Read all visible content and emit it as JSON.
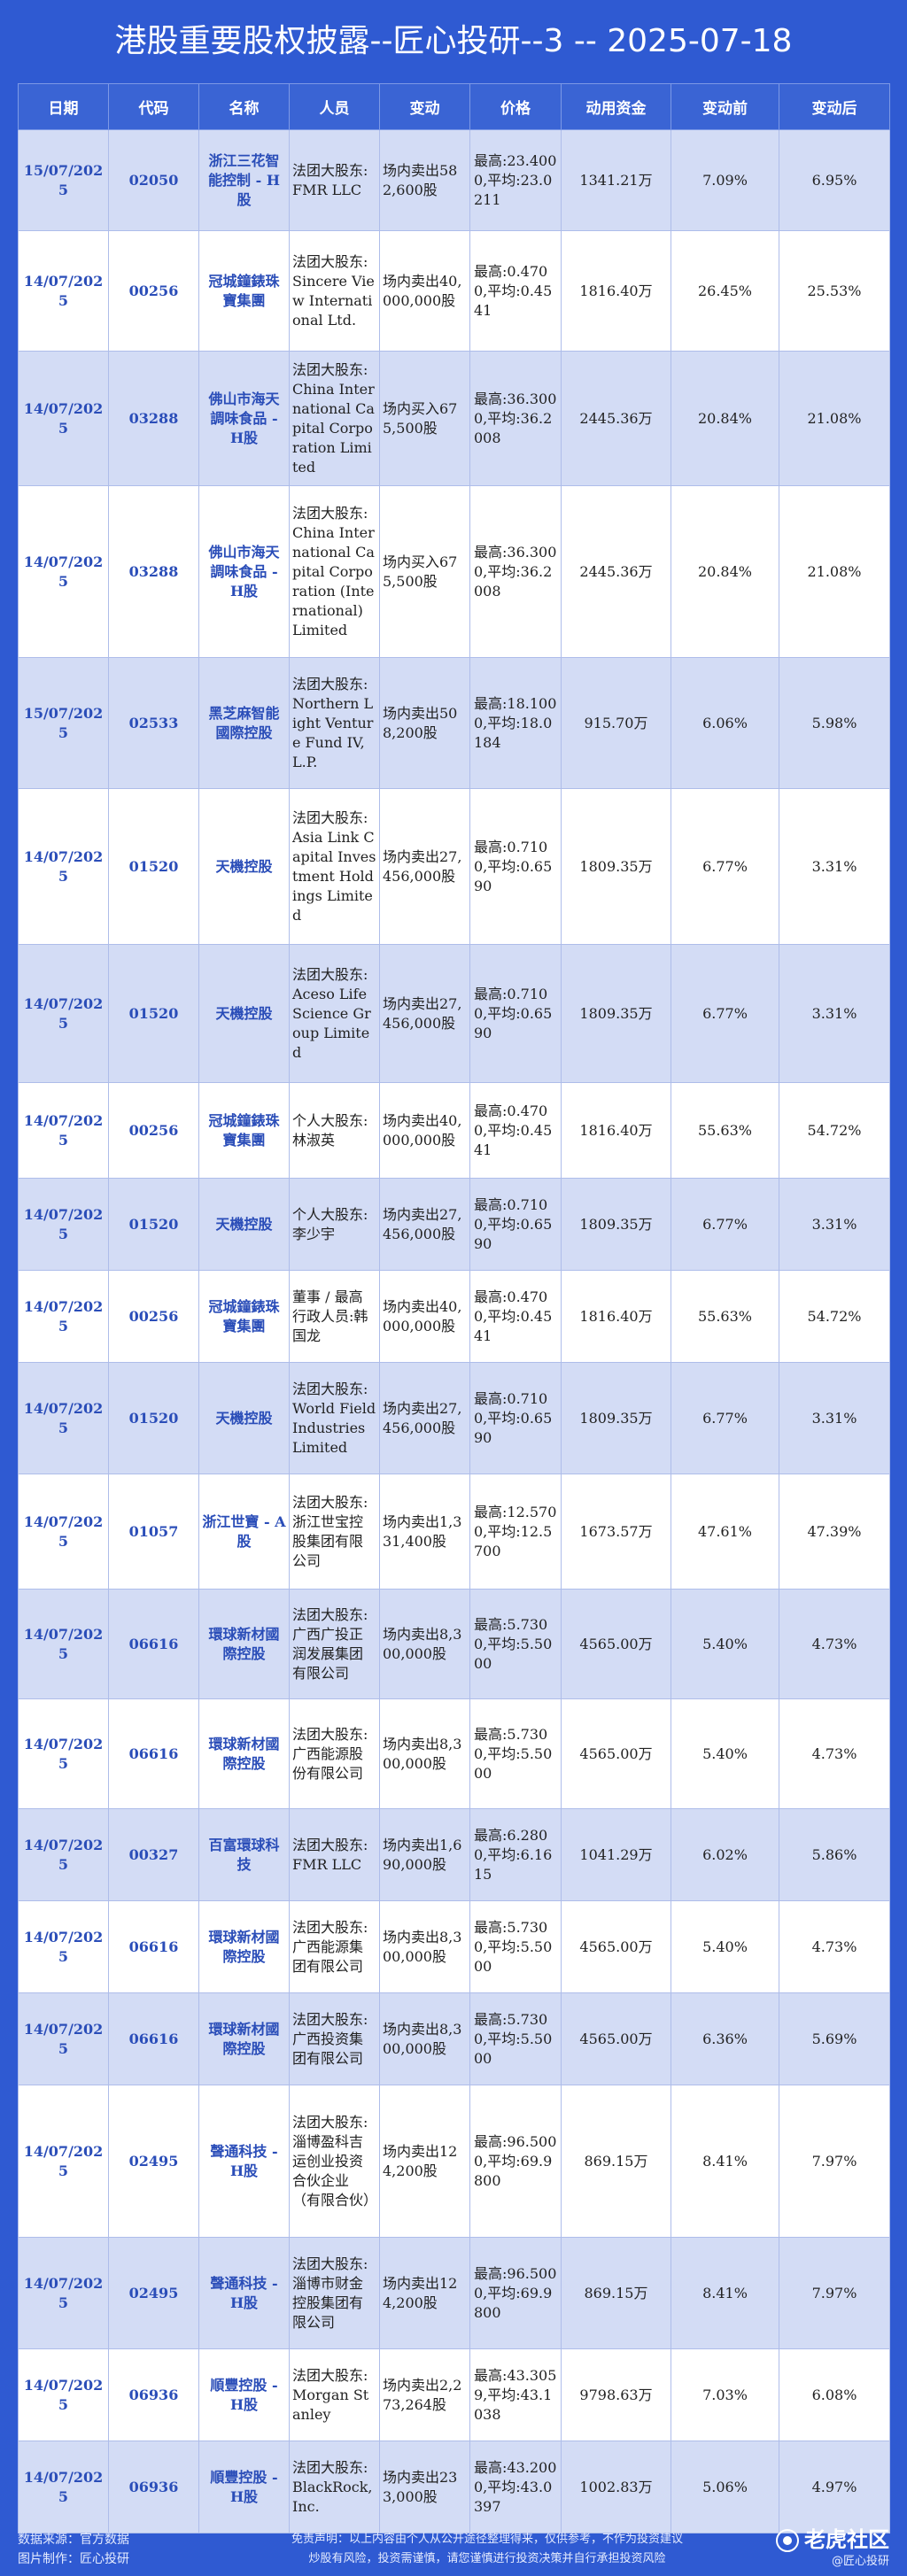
{
  "title": "港股重要股权披露--匠心投研--3 -- 2025-07-18",
  "headers": [
    "日期",
    "代码",
    "名称",
    "人员",
    "变动",
    "价格",
    "动用资金",
    "变动前",
    "变动后"
  ],
  "rows": [
    [
      "15/07/2025",
      "02050",
      "浙江三花智能控制 - H股",
      "法团大股东:FMR LLC",
      "场内卖出582,600股",
      "最高:23.4000,平均:23.0211",
      "1341.21万",
      "7.09%",
      "6.95%"
    ],
    [
      "14/07/2025",
      "00256",
      "冠城鐘錶珠寶集團",
      "法团大股东:Sincere View International Ltd.",
      "场内卖出40,000,000股",
      "最高:0.4700,平均:0.4541",
      "1816.40万",
      "26.45%",
      "25.53%"
    ],
    [
      "14/07/2025",
      "03288",
      "佛山市海天調味食品 - H股",
      "法团大股东:China International Capital Corporation Limited",
      "场内买入675,500股",
      "最高:36.3000,平均:36.2008",
      "2445.36万",
      "20.84%",
      "21.08%"
    ],
    [
      "14/07/2025",
      "03288",
      "佛山市海天調味食品 - H股",
      "法团大股东:China International Capital Corporation (International) Limited",
      "场内买入675,500股",
      "最高:36.3000,平均:36.2008",
      "2445.36万",
      "20.84%",
      "21.08%"
    ],
    [
      "15/07/2025",
      "02533",
      "黑芝麻智能國際控股",
      "法团大股东:Northern Light Venture Fund IV, L.P.",
      "场内卖出508,200股",
      "最高:18.1000,平均:18.0184",
      "915.70万",
      "6.06%",
      "5.98%"
    ],
    [
      "14/07/2025",
      "01520",
      "天機控股",
      "法团大股东:Asia Link Capital Investment Holdings Limited",
      "场内卖出27,456,000股",
      "最高:0.7100,平均:0.6590",
      "1809.35万",
      "6.77%",
      "3.31%"
    ],
    [
      "14/07/2025",
      "01520",
      "天機控股",
      "法团大股东:Aceso Life Science Group Limited",
      "场内卖出27,456,000股",
      "最高:0.7100,平均:0.6590",
      "1809.35万",
      "6.77%",
      "3.31%"
    ],
    [
      "14/07/2025",
      "00256",
      "冠城鐘錶珠寶集團",
      "个人大股东:林淑英",
      "场内卖出40,000,000股",
      "最高:0.4700,平均:0.4541",
      "1816.40万",
      "55.63%",
      "54.72%"
    ],
    [
      "14/07/2025",
      "01520",
      "天機控股",
      "个人大股东:李少宇",
      "场内卖出27,456,000股",
      "最高:0.7100,平均:0.6590",
      "1809.35万",
      "6.77%",
      "3.31%"
    ],
    [
      "14/07/2025",
      "00256",
      "冠城鐘錶珠寶集團",
      "董事 / 最高行政人员:韩国龙",
      "场内卖出40,000,000股",
      "最高:0.4700,平均:0.4541",
      "1816.40万",
      "55.63%",
      "54.72%"
    ],
    [
      "14/07/2025",
      "01520",
      "天機控股",
      "法团大股东:World Field Industries Limited",
      "场内卖出27,456,000股",
      "最高:0.7100,平均:0.6590",
      "1809.35万",
      "6.77%",
      "3.31%"
    ],
    [
      "14/07/2025",
      "01057",
      "浙江世寶 - A股",
      "法团大股东:浙江世宝控股集团有限公司",
      "场内卖出1,331,400股",
      "最高:12.5700,平均:12.5700",
      "1673.57万",
      "47.61%",
      "47.39%"
    ],
    [
      "14/07/2025",
      "06616",
      "環球新材國際控股",
      "法团大股东:广西广投正润发展集团有限公司",
      "场内卖出8,300,000股",
      "最高:5.7300,平均:5.5000",
      "4565.00万",
      "5.40%",
      "4.73%"
    ],
    [
      "14/07/2025",
      "06616",
      "環球新材國際控股",
      "法团大股东:广西能源股份有限公司",
      "场内卖出8,300,000股",
      "最高:5.7300,平均:5.5000",
      "4565.00万",
      "5.40%",
      "4.73%"
    ],
    [
      "14/07/2025",
      "00327",
      "百富環球科技",
      "法团大股东:FMR LLC",
      "场内卖出1,690,000股",
      "最高:6.2800,平均:6.1615",
      "1041.29万",
      "6.02%",
      "5.86%"
    ],
    [
      "14/07/2025",
      "06616",
      "環球新材國際控股",
      "法团大股东:广西能源集团有限公司",
      "场内卖出8,300,000股",
      "最高:5.7300,平均:5.5000",
      "4565.00万",
      "5.40%",
      "4.73%"
    ],
    [
      "14/07/2025",
      "06616",
      "環球新材國際控股",
      "法团大股东:广西投资集团有限公司",
      "场内卖出8,300,000股",
      "最高:5.7300,平均:5.5000",
      "4565.00万",
      "6.36%",
      "5.69%"
    ],
    [
      "14/07/2025",
      "02495",
      "聲通科技 - H股",
      "法团大股东:淄博盈科吉运创业投资合伙企业（有限合伙）",
      "场内卖出124,200股",
      "最高:96.5000,平均:69.9800",
      "869.15万",
      "8.41%",
      "7.97%"
    ],
    [
      "14/07/2025",
      "02495",
      "聲通科技 - H股",
      "法团大股东:淄博市财金控股集团有限公司",
      "场内卖出124,200股",
      "最高:96.5000,平均:69.9800",
      "869.15万",
      "8.41%",
      "7.97%"
    ],
    [
      "14/07/2025",
      "06936",
      "順豐控股 - H股",
      "法团大股东:Morgan Stanley",
      "场内卖出2,273,264股",
      "最高:43.3059,平均:43.1038",
      "9798.63万",
      "7.03%",
      "6.08%"
    ],
    [
      "14/07/2025",
      "06936",
      "順豐控股 - H股",
      "法团大股东:BlackRock, Inc.",
      "场内卖出233,000股",
      "最高:43.2000,平均:43.0397",
      "1002.83万",
      "5.06%",
      "4.97%"
    ]
  ],
  "footer": {
    "source": "数据来源：官方数据",
    "maker": "图片制作：匠心投研",
    "disclaimer_1": "免责声明：以上内容由个人从公开途径整理得来，仅供参考，不作为投资建议",
    "disclaimer_2": "炒股有风险，投资需谨慎，请您谨慎进行投资决策并自行承担投资风险",
    "brand": "老虎社区",
    "handle": "@匠心投研",
    "logo_icon": "tiger-logo-icon"
  }
}
